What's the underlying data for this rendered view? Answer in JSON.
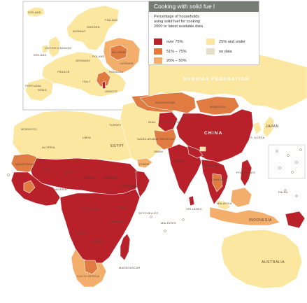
{
  "legend": {
    "title": "Cooking with solid fue l",
    "subtitle_lines": [
      "Percentage of households",
      "using solid fuel for cooking",
      "2000 or latest available data"
    ],
    "items": [
      {
        "label": "over 75%",
        "color": "#b8202a"
      },
      {
        "label": "51% – 75%",
        "color": "#e07b42"
      },
      {
        "label": "26% – 50%",
        "color": "#f3ae6b"
      },
      {
        "label": "25% and under",
        "color": "#fbe7a0"
      },
      {
        "label": "no data",
        "color": "#e6dfc9"
      }
    ]
  },
  "colors": {
    "over75": "#b8202a",
    "p51_75": "#e07b42",
    "p26_50": "#f3ae6b",
    "under25": "#fbe7a0",
    "nodata": "#e6dfc9",
    "border": "#ffffff"
  },
  "labels": {
    "russia": "RUSSIAN FEDERATION",
    "china": "CHINA",
    "india": "INDIA",
    "japan": "JAPAN",
    "australia": "AUSTRALIA",
    "indonesia": "INDONESIA",
    "mongolia": "MONGOLIA",
    "kazakhstan": "KAZAKHSTAN",
    "egypt": "EGYPT",
    "algeria": "ALGERIA",
    "libya": "LIBYA",
    "turkey": "TURKEY",
    "saudi": "SAUDI ARABIA",
    "iceland": "ICELAND",
    "norway": "NORWAY",
    "sweden": "SWEDEN",
    "finland": "FINLAND",
    "uk": "UNITED KINGDOM",
    "ireland": "IRELAND",
    "france": "FRANCE",
    "spain": "SPAIN",
    "portugal": "PORTUGAL",
    "germany": "GERMANY",
    "poland": "POLAND",
    "italy": "ITALY",
    "ukraine": "UKRAINE",
    "belarus": "BELARUS",
    "romania": "ROMANIA",
    "greece": "GREECE",
    "sudan": "SUDAN",
    "chad": "CHAD",
    "niger": "NIGER",
    "mali": "MALI",
    "ethiopia": "ETHIOPIA",
    "kenya": "KENYA",
    "tanzania": "TANZANIA",
    "angola": "ANGOLA",
    "zambia": "ZAMBIA",
    "dr_congo": "DR CONGO",
    "nigeria": "NIGERIA",
    "south_africa": "SOUTH AFRICA",
    "madagascar": "MADAGASCAR",
    "seychelles": "SEYCHELLES",
    "maldives": "MALDIVES",
    "iran": "IRAN",
    "pakistan": "PAKISTAN",
    "afghanistan": "AFGHANISTAN",
    "nepal": "NEPAL",
    "myanmar": "MYANMAR",
    "thailand": "THAILAND",
    "philippines": "PHILIPPINES",
    "malaysia": "MALAYSIA",
    "sri_lanka": "SRI LANKA",
    "yemen": "YEMEN",
    "oman": "OMAN",
    "morocco": "MOROCCO",
    "mauritania": "MAURITANIA",
    "south_korea": "S. KOREA",
    "palau": "PALAU"
  }
}
